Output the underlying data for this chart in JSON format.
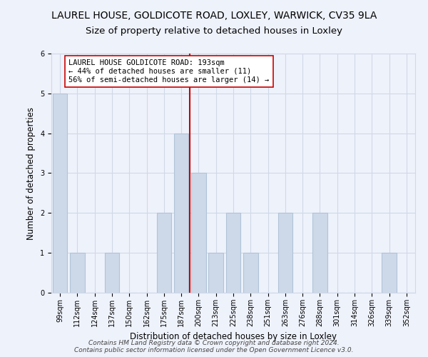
{
  "title": "LAUREL HOUSE, GOLDICOTE ROAD, LOXLEY, WARWICK, CV35 9LA",
  "subtitle": "Size of property relative to detached houses in Loxley",
  "xlabel": "Distribution of detached houses by size in Loxley",
  "ylabel": "Number of detached properties",
  "categories": [
    "99sqm",
    "112sqm",
    "124sqm",
    "137sqm",
    "150sqm",
    "162sqm",
    "175sqm",
    "187sqm",
    "200sqm",
    "213sqm",
    "225sqm",
    "238sqm",
    "251sqm",
    "263sqm",
    "276sqm",
    "288sqm",
    "301sqm",
    "314sqm",
    "326sqm",
    "339sqm",
    "352sqm"
  ],
  "values": [
    5,
    1,
    0,
    1,
    0,
    0,
    2,
    4,
    3,
    1,
    2,
    1,
    0,
    2,
    0,
    2,
    0,
    0,
    0,
    1,
    0
  ],
  "bar_color": "#cdd9e8",
  "bar_edge_color": "#b0c4d8",
  "vline_x_index": 7,
  "vline_color": "#cc0000",
  "annotation_text": "LAUREL HOUSE GOLDICOTE ROAD: 193sqm\n← 44% of detached houses are smaller (11)\n56% of semi-detached houses are larger (14) →",
  "annotation_box_color": "#ffffff",
  "annotation_box_edge_color": "#cc0000",
  "ylim": [
    0,
    6
  ],
  "yticks": [
    0,
    1,
    2,
    3,
    4,
    5,
    6
  ],
  "grid_color": "#d0d8e8",
  "background_color": "#eef2fb",
  "footer_text": "Contains HM Land Registry data © Crown copyright and database right 2024.\nContains public sector information licensed under the Open Government Licence v3.0.",
  "title_fontsize": 10,
  "subtitle_fontsize": 9.5,
  "xlabel_fontsize": 8.5,
  "ylabel_fontsize": 8.5,
  "tick_fontsize": 7,
  "annotation_fontsize": 7.5,
  "footer_fontsize": 6.5
}
